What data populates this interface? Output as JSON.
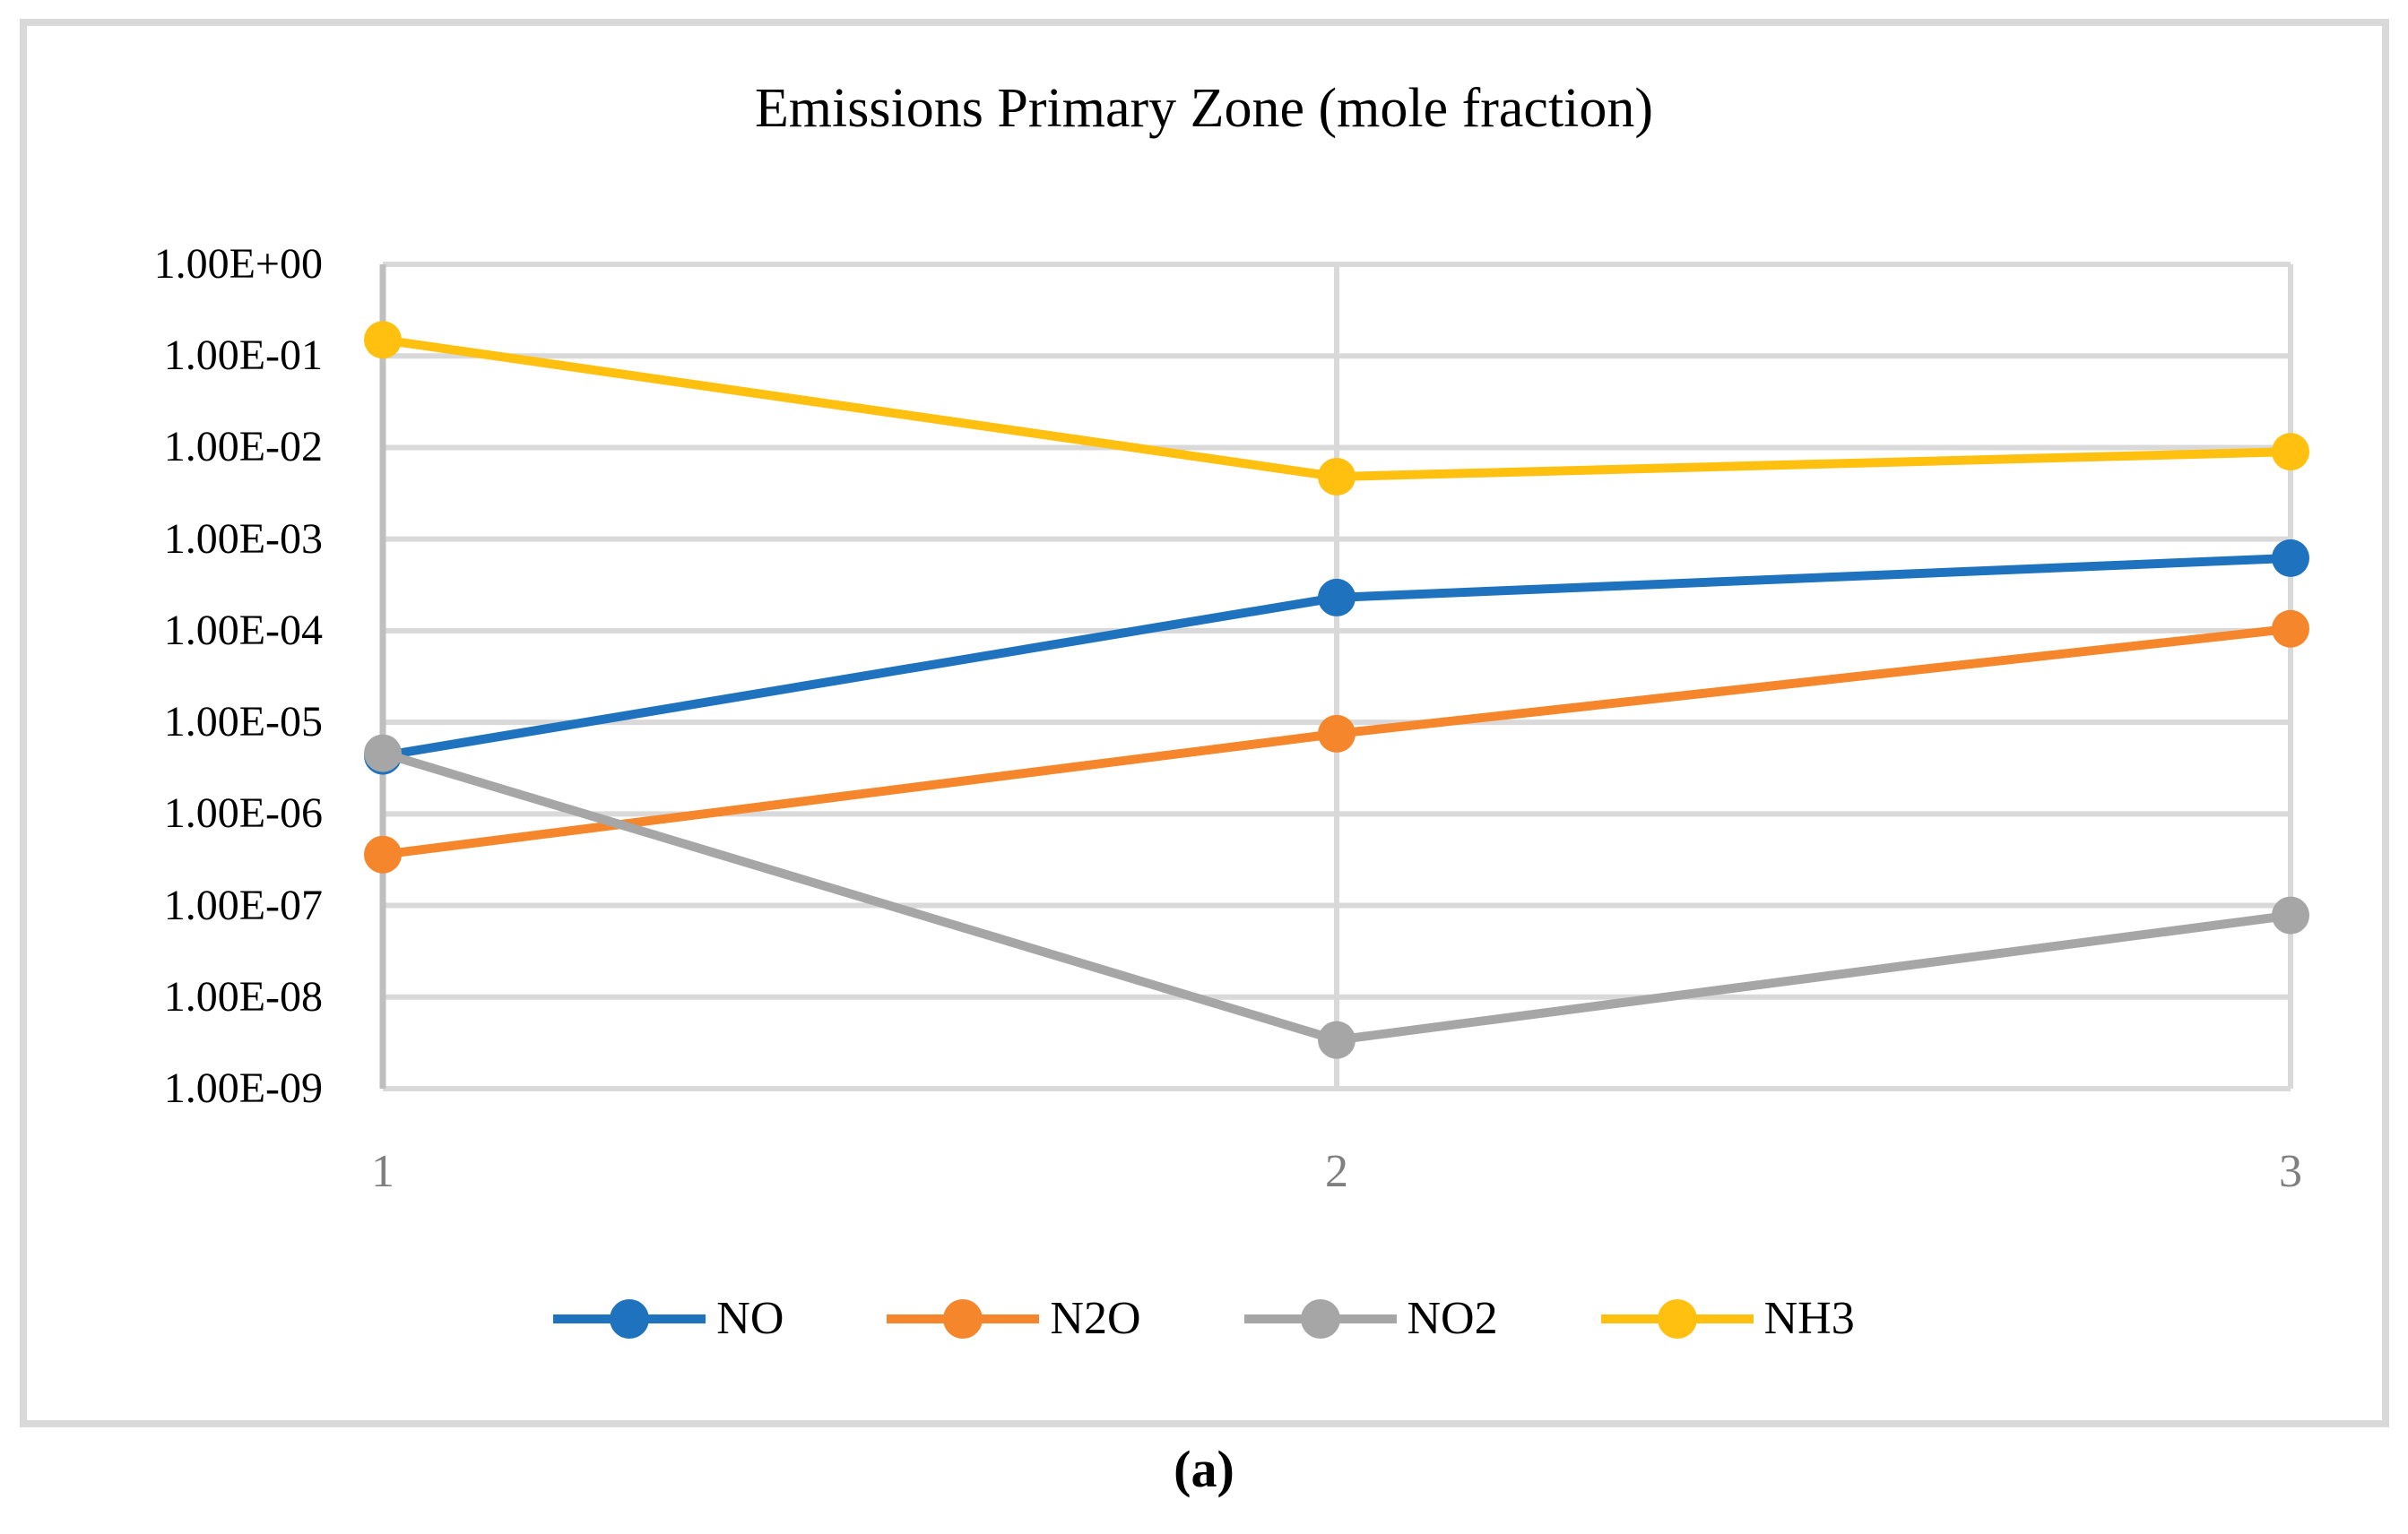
{
  "figure": {
    "caption": "(a)"
  },
  "chart_data": {
    "type": "line",
    "title": "Emissions Primary Zone (mole fraction)",
    "x": [
      1,
      2,
      3
    ],
    "x_tick_labels": [
      "1",
      "2",
      "3"
    ],
    "y_scale": "log",
    "ylim": [
      1e-09,
      1
    ],
    "y_tick_labels": [
      "1.00E+00",
      "1.00E-01",
      "1.00E-02",
      "1.00E-03",
      "1.00E-04",
      "1.00E-05",
      "1.00E-06",
      "1.00E-07",
      "1.00E-08",
      "1.00E-09"
    ],
    "grid": true,
    "legend_position": "bottom",
    "series": [
      {
        "name": "NO",
        "color": "#1F72BE",
        "values": [
          4.3e-06,
          0.00023,
          0.00062
        ]
      },
      {
        "name": "N2O",
        "color": "#F6862B",
        "values": [
          3.6e-07,
          7.5e-06,
          0.000105
        ]
      },
      {
        "name": "NO2",
        "color": "#A6A6A6",
        "values": [
          4.6e-06,
          3.4e-09,
          7.8e-08
        ]
      },
      {
        "name": "NH3",
        "color": "#FFC010",
        "values": [
          0.15,
          0.0048,
          0.009
        ]
      }
    ],
    "colors": {
      "gridline": "#D9D9D9",
      "axis_line": "#BFBFBF",
      "frame_border": "#D9D9D9",
      "x_tick_label": "#7F7F7F",
      "title_text": "#000000"
    }
  }
}
